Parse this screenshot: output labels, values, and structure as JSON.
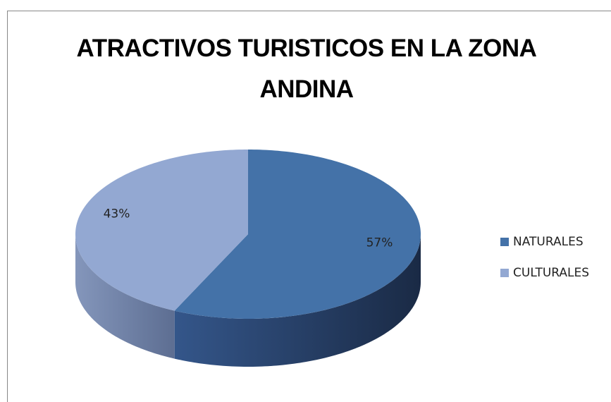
{
  "chart_data": {
    "type": "pie",
    "title": "ATRACTIVOS TURISTICOS EN LA ZONA ANDINA",
    "categories": [
      "NATURALES",
      "CULTURALES"
    ],
    "values": [
      57,
      43
    ],
    "value_labels": [
      "57%",
      "43%"
    ],
    "colors": [
      "#4472a8",
      "#93a8d2"
    ],
    "legend": "right"
  }
}
